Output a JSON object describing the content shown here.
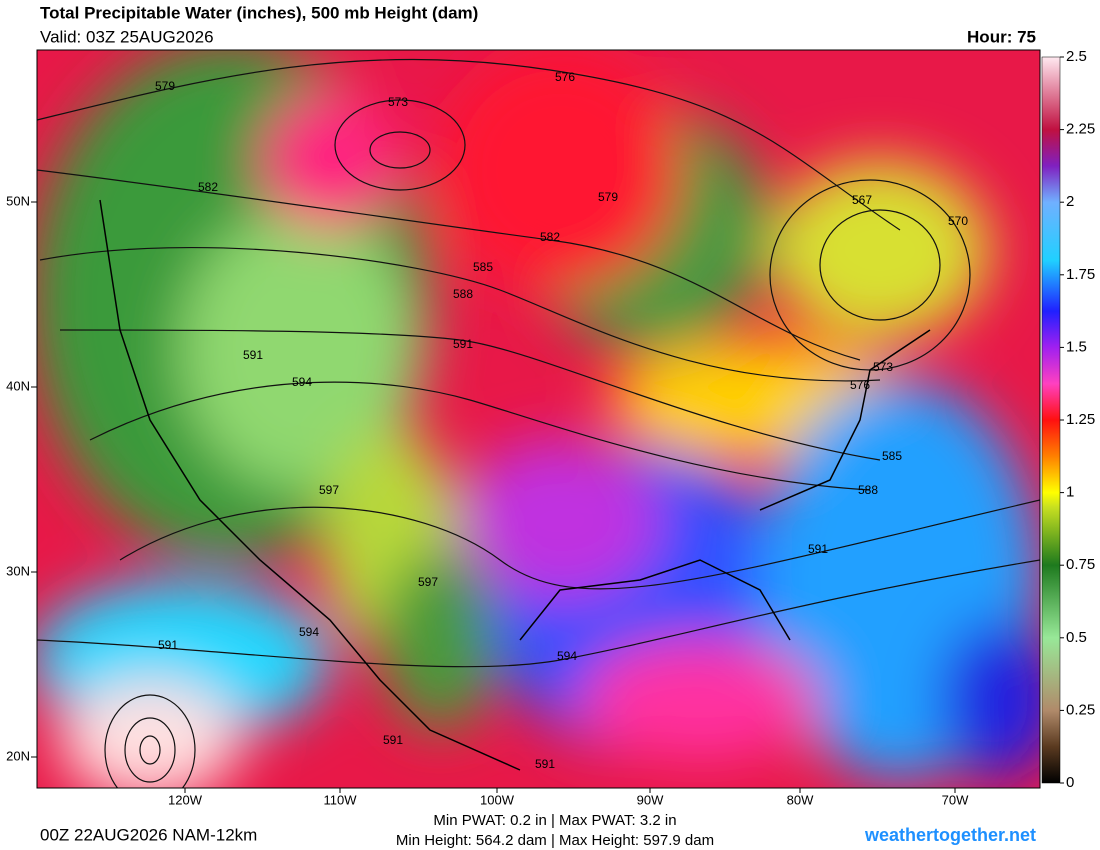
{
  "header": {
    "title": "Total Precipitable Water (inches), 500 mb Height (dam)",
    "valid": "Valid: 03Z 25AUG2026",
    "hour": "Hour: 75"
  },
  "map": {
    "lat_labels": [
      "50N",
      "40N",
      "30N",
      "20N"
    ],
    "lon_labels": [
      "120W",
      "110W",
      "100W",
      "90W",
      "80W",
      "70W"
    ],
    "contour_labels": [
      "579",
      "576",
      "573",
      "582",
      "579",
      "567",
      "570",
      "582",
      "585",
      "588",
      "591",
      "591",
      "594",
      "573",
      "576",
      "585",
      "588",
      "597",
      "591",
      "597",
      "594",
      "591",
      "594",
      "591",
      "591"
    ]
  },
  "colorbar": {
    "range": [
      0,
      2.5
    ],
    "ticks": [
      0,
      0.25,
      0.5,
      0.75,
      1,
      1.25,
      1.5,
      1.75,
      2,
      2.25,
      2.5
    ]
  },
  "footer": {
    "run": "00Z 22AUG2026 NAM-12km",
    "pwat": "Min PWAT:   0.2 in | Max PWAT:   3.2 in",
    "height": "Min Height: 564.2 dam | Max Height: 597.9 dam",
    "site": "weathertogether.net"
  }
}
